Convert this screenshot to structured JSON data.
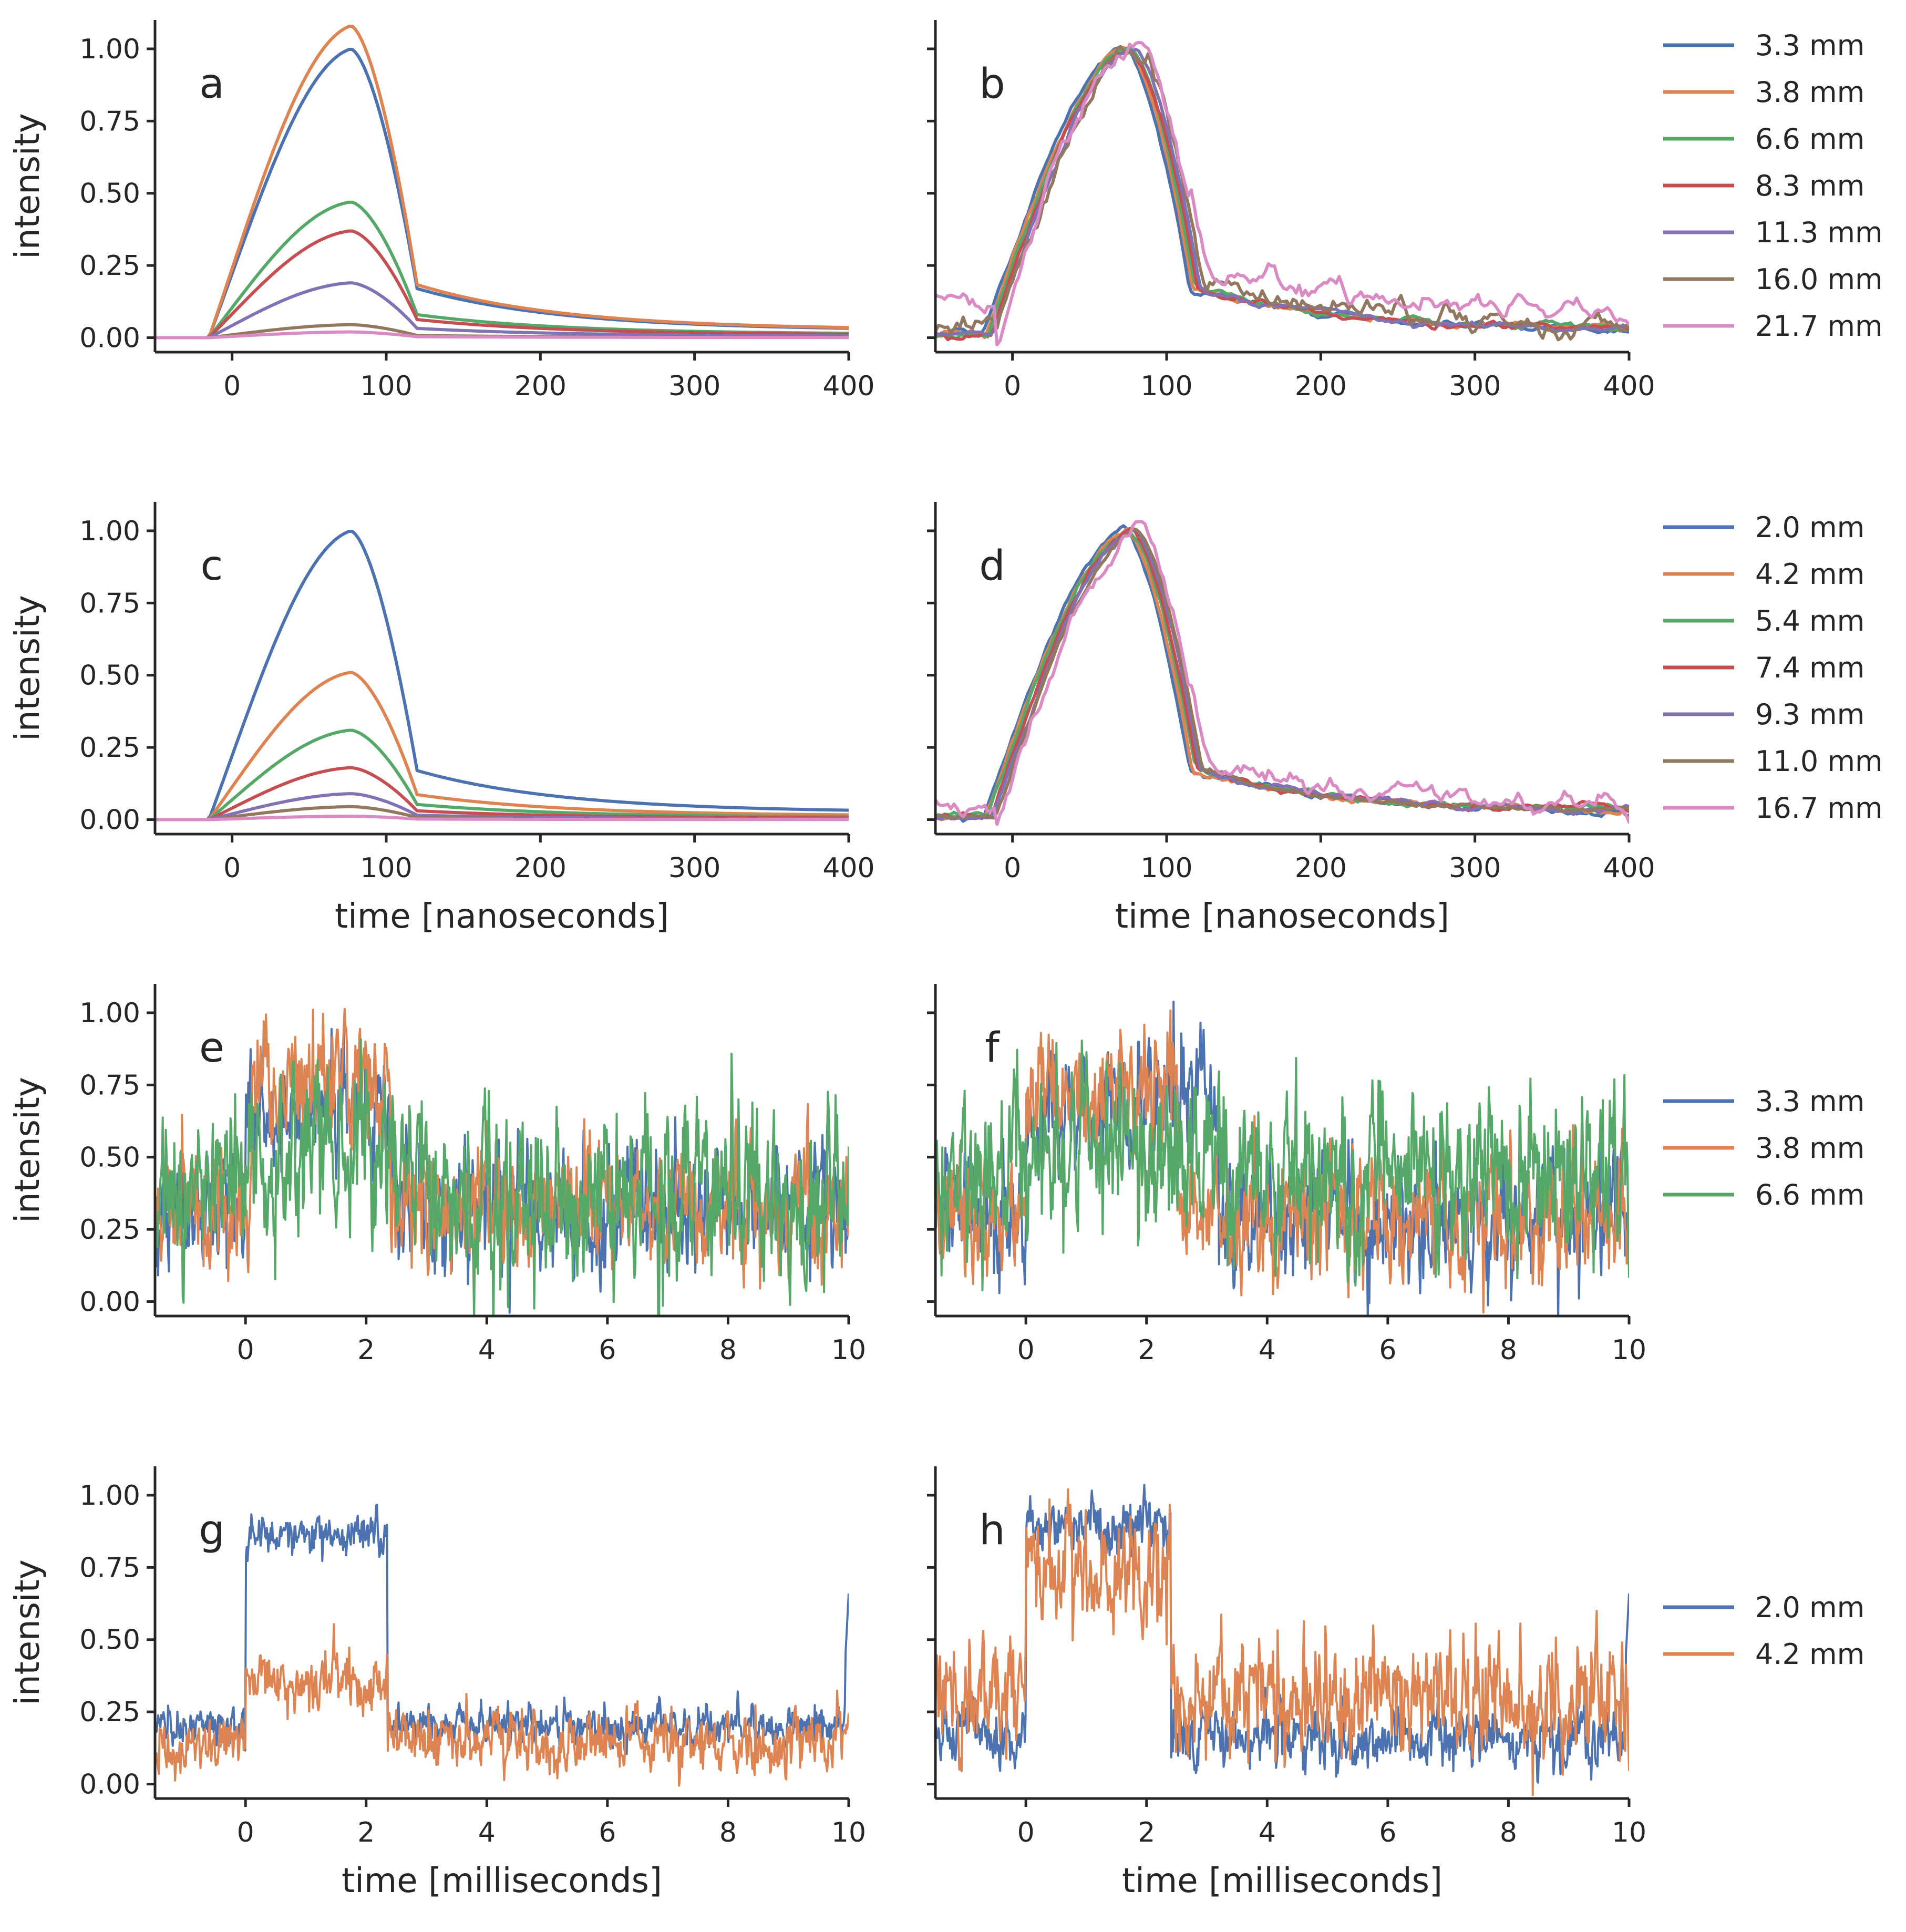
{
  "colors": {
    "c0": "#4c72b0",
    "c1": "#dd8452",
    "c2": "#55a868",
    "c3": "#c44e52",
    "c4": "#8172b3",
    "c5": "#937860",
    "c6": "#da8bc3"
  },
  "legends": {
    "row1": [
      "3.3 mm",
      "3.8 mm",
      "6.6 mm",
      "8.3 mm",
      "11.3 mm",
      "16.0 mm",
      "21.7 mm"
    ],
    "row2": [
      "2.0 mm",
      "4.2 mm",
      "5.4 mm",
      "7.4 mm",
      "9.3 mm",
      "11.0 mm",
      "16.7 mm"
    ],
    "row3": [
      "3.3 mm",
      "3.8 mm",
      "6.6 mm"
    ],
    "row4": [
      "2.0 mm",
      "4.2 mm"
    ]
  },
  "chart_data": [
    {
      "panel": "a",
      "type": "line",
      "ylabel": "intensity",
      "xlabel": "",
      "xlim": [
        -50,
        400
      ],
      "ylim": [
        -0.05,
        1.1
      ],
      "xticks": [
        "0",
        "100",
        "200",
        "300",
        "400"
      ],
      "yticks": [
        "0.00",
        "0.25",
        "0.50",
        "0.75",
        "1.00"
      ],
      "shape": "pulse_ns",
      "noise": "none",
      "series": [
        {
          "name": "3.3 mm",
          "peak": 1.0
        },
        {
          "name": "3.8 mm",
          "peak": 1.08
        },
        {
          "name": "6.6 mm",
          "peak": 0.47
        },
        {
          "name": "8.3 mm",
          "peak": 0.37
        },
        {
          "name": "11.3 mm",
          "peak": 0.19
        },
        {
          "name": "16.0 mm",
          "peak": 0.045
        },
        {
          "name": "21.7 mm",
          "peak": 0.02
        }
      ]
    },
    {
      "panel": "b",
      "type": "line",
      "ylabel": "",
      "xlabel": "",
      "xlim": [
        -50,
        400
      ],
      "ylim": [
        -0.05,
        1.1
      ],
      "xticks": [
        "0",
        "100",
        "200",
        "300",
        "400"
      ],
      "yticks": [
        "",
        "",
        "",
        "",
        ""
      ],
      "shape": "pulse_ns_norm",
      "noise": "weak",
      "series": [
        {
          "name": "3.3 mm",
          "peak": 1.0,
          "tail": 0.0
        },
        {
          "name": "3.8 mm",
          "peak": 1.0,
          "tail": 0.0
        },
        {
          "name": "6.6 mm",
          "peak": 1.0,
          "tail": 0.0
        },
        {
          "name": "8.3 mm",
          "peak": 1.0,
          "tail": 0.0
        },
        {
          "name": "11.3 mm",
          "peak": 1.0,
          "tail": 0.0
        },
        {
          "name": "16.0 mm",
          "peak": 1.0,
          "tail": 0.03
        },
        {
          "name": "21.7 mm",
          "peak": 1.0,
          "tail": 0.08
        }
      ]
    },
    {
      "panel": "c",
      "type": "line",
      "ylabel": "intensity",
      "xlabel": "time [nanoseconds]",
      "xlim": [
        -50,
        400
      ],
      "ylim": [
        -0.05,
        1.1
      ],
      "xticks": [
        "0",
        "100",
        "200",
        "300",
        "400"
      ],
      "yticks": [
        "0.00",
        "0.25",
        "0.50",
        "0.75",
        "1.00"
      ],
      "shape": "pulse_ns",
      "noise": "none",
      "series": [
        {
          "name": "2.0 mm",
          "peak": 1.0
        },
        {
          "name": "4.2 mm",
          "peak": 0.51
        },
        {
          "name": "5.4 mm",
          "peak": 0.31
        },
        {
          "name": "7.4 mm",
          "peak": 0.18
        },
        {
          "name": "9.3 mm",
          "peak": 0.09
        },
        {
          "name": "11.0 mm",
          "peak": 0.045
        },
        {
          "name": "16.7 mm",
          "peak": 0.012
        }
      ]
    },
    {
      "panel": "d",
      "type": "line",
      "ylabel": "",
      "xlabel": "time [nanoseconds]",
      "xlim": [
        -50,
        400
      ],
      "ylim": [
        -0.05,
        1.1
      ],
      "xticks": [
        "0",
        "100",
        "200",
        "300",
        "400"
      ],
      "yticks": [
        "",
        "",
        "",
        "",
        ""
      ],
      "shape": "pulse_ns_norm",
      "noise": "weak",
      "series": [
        {
          "name": "2.0 mm",
          "peak": 1.0,
          "tail": 0.0
        },
        {
          "name": "4.2 mm",
          "peak": 1.0,
          "tail": 0.0
        },
        {
          "name": "5.4 mm",
          "peak": 1.0,
          "tail": 0.0
        },
        {
          "name": "7.4 mm",
          "peak": 1.0,
          "tail": 0.0
        },
        {
          "name": "9.3 mm",
          "peak": 1.0,
          "tail": 0.0
        },
        {
          "name": "11.0 mm",
          "peak": 1.0,
          "tail": 0.0
        },
        {
          "name": "16.7 mm",
          "peak": 1.0,
          "tail": 0.04
        }
      ]
    },
    {
      "panel": "e",
      "type": "line",
      "ylabel": "intensity",
      "xlabel": "",
      "xlim": [
        -1.5,
        10
      ],
      "ylim": [
        -0.05,
        1.1
      ],
      "xticks": [
        "0",
        "2",
        "4",
        "6",
        "8",
        "10"
      ],
      "yticks": [
        "0.00",
        "0.25",
        "0.50",
        "0.75",
        "1.00"
      ],
      "shape": "ms_noisy",
      "series": [
        {
          "name": "3.3 mm",
          "base": 0.33,
          "plateau": 0.68,
          "p_start": 0.0,
          "p_end": 2.4,
          "noise": 0.09
        },
        {
          "name": "3.8 mm",
          "base": 0.33,
          "plateau": 0.75,
          "p_start": 0.1,
          "p_end": 2.4,
          "noise": 0.09
        },
        {
          "name": "6.6 mm",
          "base": 0.37,
          "plateau": 0.5,
          "p_start": -0.2,
          "p_end": 3.0,
          "noise": 0.12
        }
      ]
    },
    {
      "panel": "f",
      "type": "line",
      "ylabel": "",
      "xlabel": "",
      "xlim": [
        -1.5,
        10
      ],
      "ylim": [
        -0.05,
        1.1
      ],
      "xticks": [
        "0",
        "2",
        "4",
        "6",
        "8",
        "10"
      ],
      "yticks": [
        "",
        "",
        "",
        "",
        ""
      ],
      "shape": "ms_noisy",
      "series": [
        {
          "name": "3.3 mm",
          "base": 0.3,
          "plateau": 0.68,
          "p_start": 0.0,
          "p_end": 3.2,
          "noise": 0.09
        },
        {
          "name": "3.8 mm",
          "base": 0.3,
          "plateau": 0.74,
          "p_start": 0.0,
          "p_end": 2.5,
          "noise": 0.09
        },
        {
          "name": "6.6 mm",
          "base": 0.42,
          "plateau": 0.52,
          "p_start": -0.2,
          "p_end": 3.2,
          "noise": 0.12
        }
      ]
    },
    {
      "panel": "g",
      "type": "line",
      "ylabel": "intensity",
      "xlabel": "time [milliseconds]",
      "xlim": [
        -1.5,
        10
      ],
      "ylim": [
        -0.05,
        1.1
      ],
      "xticks": [
        "0",
        "2",
        "4",
        "6",
        "8",
        "10"
      ],
      "yticks": [
        "0.00",
        "0.25",
        "0.50",
        "0.75",
        "1.00"
      ],
      "shape": "ms_noisy",
      "series": [
        {
          "name": "2.0 mm",
          "base": 0.2,
          "plateau": 0.87,
          "p_start": 0.0,
          "p_end": 2.35,
          "noise": 0.03,
          "spike_end": 0.66
        },
        {
          "name": "4.2 mm",
          "base": 0.15,
          "plateau": 0.35,
          "p_start": 0.0,
          "p_end": 2.35,
          "noise": 0.045
        }
      ]
    },
    {
      "panel": "h",
      "type": "line",
      "ylabel": "",
      "xlabel": "time [milliseconds]",
      "xlim": [
        -1.5,
        10
      ],
      "ylim": [
        -0.05,
        1.1
      ],
      "xticks": [
        "0",
        "2",
        "4",
        "6",
        "8",
        "10"
      ],
      "yticks": [
        "",
        "",
        "",
        "",
        ""
      ],
      "shape": "ms_noisy",
      "series": [
        {
          "name": "2.0 mm",
          "base": 0.16,
          "plateau": 0.9,
          "p_start": 0.0,
          "p_end": 2.4,
          "noise": 0.045,
          "spike_end": 0.66
        },
        {
          "name": "4.2 mm",
          "base": 0.3,
          "plateau": 0.72,
          "p_start": 0.0,
          "p_end": 2.4,
          "noise": 0.09
        }
      ]
    }
  ]
}
